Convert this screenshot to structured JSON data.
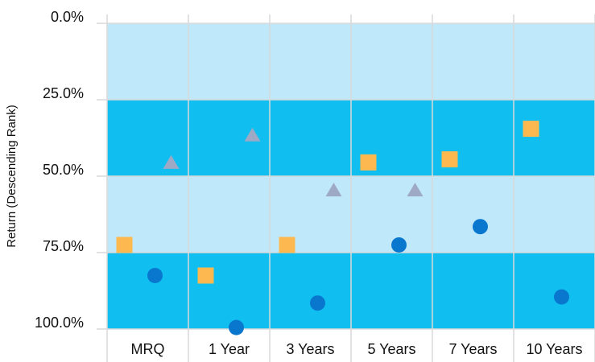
{
  "chart_data": {
    "type": "scatter",
    "title": "",
    "xlabel": "",
    "ylabel": "Return (Descending Rank)",
    "y_axis_reversed": true,
    "ylim": [
      0,
      100
    ],
    "y_ticks": [
      "0.0%",
      "25.0%",
      "50.0%",
      "75.0%",
      "100.0%"
    ],
    "categories": [
      "MRQ",
      "1 Year",
      "3 Years",
      "5 Years",
      "7 Years",
      "10 Years"
    ],
    "bands": [
      {
        "from": 0,
        "to": 25,
        "color": "#bfe9fb"
      },
      {
        "from": 25,
        "to": 50,
        "color": "#10bfef"
      },
      {
        "from": 50,
        "to": 75,
        "color": "#bfe9fb"
      },
      {
        "from": 75,
        "to": 100,
        "color": "#10bfef"
      }
    ],
    "grid": true,
    "legend": "none",
    "series": [
      {
        "marker": "triangle",
        "color": "#9ea9c6",
        "values": [
          45.5,
          36.5,
          54.5,
          54.5,
          null,
          null
        ]
      },
      {
        "marker": "square",
        "color": "#fdb950",
        "values": [
          72.5,
          82.5,
          72.5,
          45.5,
          44.5,
          34.5
        ]
      },
      {
        "marker": "circle",
        "color": "#0a77cf",
        "values": [
          82.5,
          99.5,
          91.5,
          72.5,
          66.5,
          89.5
        ]
      }
    ]
  }
}
